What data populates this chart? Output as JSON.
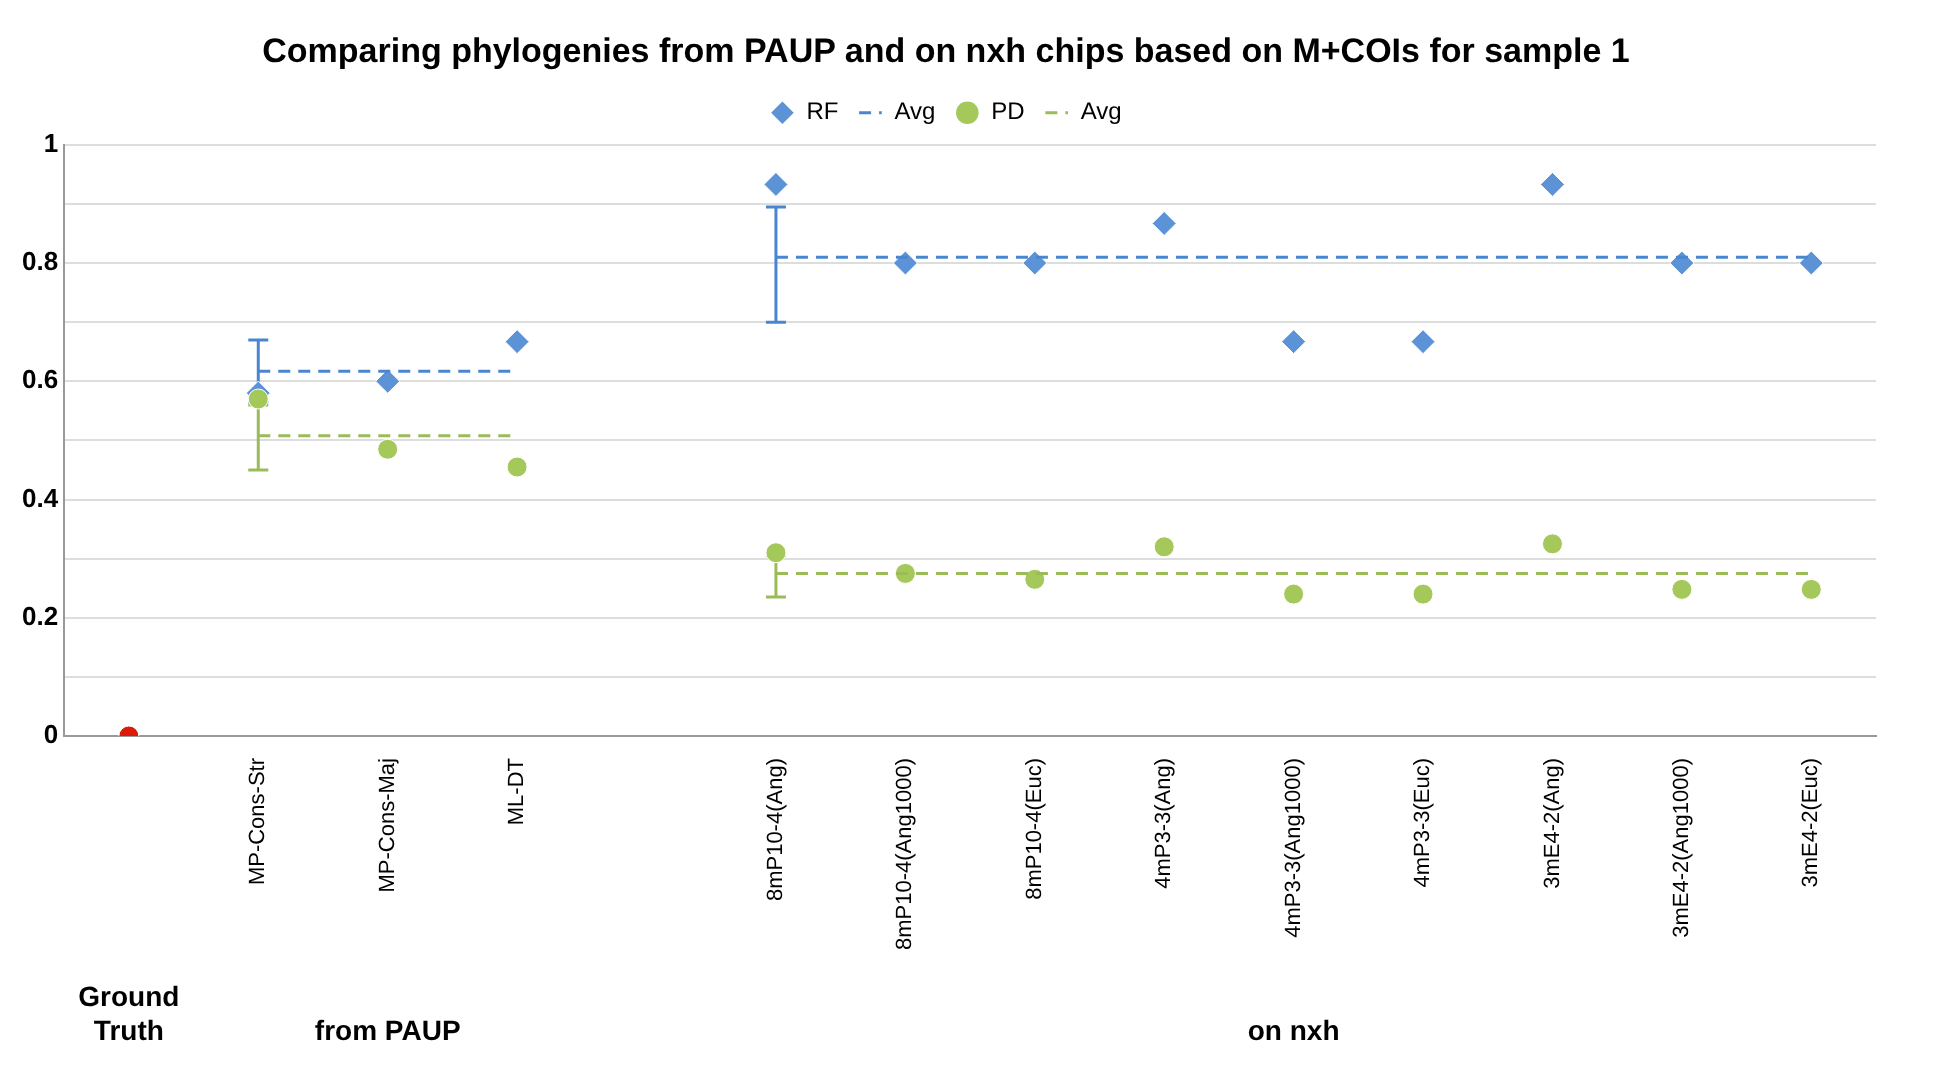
{
  "chart_data": {
    "type": "scatter",
    "title": "Comparing phylogenies from PAUP and on nxh chips based on M+COIs for sample 1",
    "categories": [
      null,
      "MP-Cons-Str",
      "MP-Cons-Maj",
      "ML-DT",
      null,
      "8mP10-4(Ang)",
      "8mP10-4(Ang1000)",
      "8mP10-4(Euc)",
      "4mP3-3(Ang)",
      "4mP3-3(Ang1000)",
      "4mP3-3(Euc)",
      "3mE4-2(Ang)",
      "3mE4-2(Ang1000)",
      "3mE4-2(Euc)"
    ],
    "series": [
      {
        "name": "RF",
        "type": "scatter",
        "marker": "diamond",
        "color": "#5b93d6",
        "values": [
          null,
          0.58,
          0.6,
          0.667,
          null,
          0.933,
          0.8,
          0.8,
          0.867,
          0.667,
          0.667,
          0.933,
          0.8,
          0.8
        ]
      },
      {
        "name": "Avg",
        "type": "line",
        "marker": "none",
        "line_style": "dashed",
        "color": "#4a86d0",
        "values": [
          null,
          0.617,
          0.617,
          0.617,
          null,
          0.81,
          0.81,
          0.81,
          0.81,
          0.81,
          0.81,
          0.81,
          0.81,
          0.81
        ],
        "errors": [
          null,
          [
            0.565,
            0.67
          ],
          null,
          null,
          null,
          [
            0.7,
            0.895
          ],
          null,
          null,
          null,
          null,
          null,
          null,
          null,
          null
        ]
      },
      {
        "name": "PD",
        "type": "scatter",
        "marker": "circle",
        "color": "#a5c85a",
        "values": [
          null,
          0.57,
          0.485,
          0.455,
          null,
          0.31,
          0.275,
          0.265,
          0.32,
          0.24,
          0.24,
          0.325,
          0.248,
          0.248
        ]
      },
      {
        "name": "Avg",
        "type": "line",
        "marker": "none",
        "line_style": "dashed",
        "color": "#9bbb59",
        "values": [
          null,
          0.508,
          0.508,
          0.508,
          null,
          0.275,
          0.275,
          0.275,
          0.275,
          0.275,
          0.275,
          0.275,
          0.275,
          0.275
        ],
        "errors": [
          null,
          [
            0.45,
            0.56
          ],
          null,
          null,
          null,
          [
            0.235,
            0.305
          ],
          null,
          null,
          null,
          null,
          null,
          null,
          null,
          null
        ]
      },
      {
        "type": "scatter",
        "marker": "circle",
        "color": "#dd1a0a",
        "values": [
          0,
          null,
          null,
          null,
          null,
          null,
          null,
          null,
          null,
          null,
          null,
          null,
          null,
          null
        ]
      }
    ],
    "ylim": [
      0,
      1
    ],
    "yticks": [
      0,
      {
        "value": 0.1,
        "label": null
      },
      0.2,
      {
        "value": 0.3,
        "label": null
      },
      0.4,
      {
        "value": 0.5,
        "label": null
      },
      0.6,
      {
        "value": 0.7,
        "label": null
      },
      0.8,
      {
        "value": 0.9,
        "label": null
      },
      1
    ],
    "grid": "y",
    "legend": "top",
    "annotations": [
      "Ground Truth",
      "from PAUP",
      "on nxh"
    ]
  }
}
